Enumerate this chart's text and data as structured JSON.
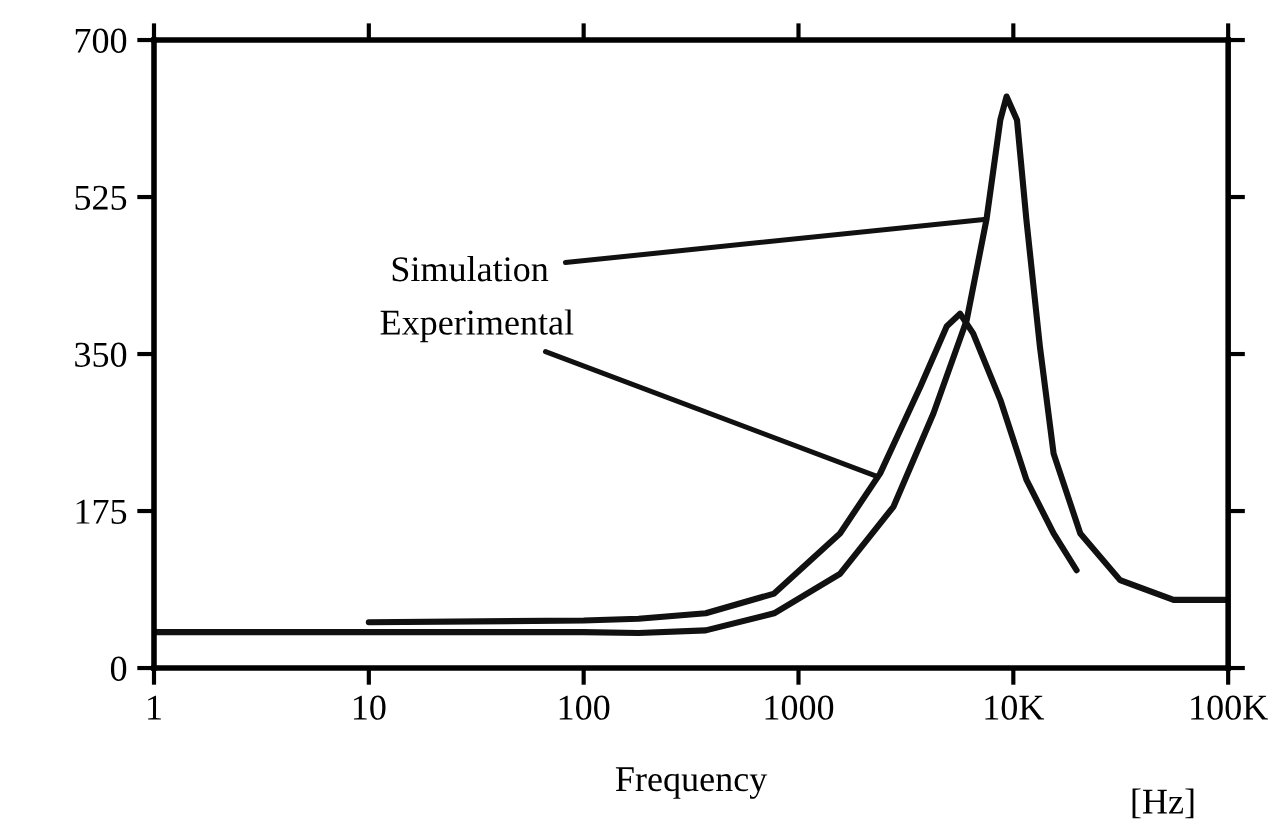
{
  "chart_data": {
    "type": "line",
    "xlabel": "Frequency",
    "log": "x",
    "xlim": [
      1,
      100000
    ],
    "ylim": [
      0,
      700
    ],
    "xticks": [
      1,
      10,
      100,
      1000,
      {
        "value": 10000,
        "label": "10K"
      },
      {
        "value": 100000,
        "label": "100K"
      }
    ],
    "yticks": [
      0,
      175,
      350,
      525,
      700
    ],
    "grid": false,
    "marker": "none",
    "line_style": "solid",
    "series": [
      {
        "color": "#111111",
        "x": [
          1,
          10,
          100,
          180,
          370,
          770,
          1560,
          2770,
          4250,
          6070,
          7500,
          8700,
          9300,
          10400,
          11500,
          13300,
          15400,
          20500,
          31400,
          55700,
          100000
        ],
        "values": [
          40,
          40,
          40,
          39,
          42,
          61,
          105,
          180,
          284,
          388,
          500,
          611,
          637,
          611,
          500,
          358,
          239,
          150,
          98,
          76,
          76
        ]
      },
      {
        "color": "#111111",
        "x": [
          10,
          100,
          180,
          370,
          770,
          1560,
          2400,
          3700,
          4900,
          5650,
          6500,
          8700,
          11500,
          15400,
          19700
        ],
        "values": [
          51,
          53,
          55,
          61,
          83,
          150,
          217,
          314,
          381,
          395,
          373,
          299,
          210,
          150,
          109
        ]
      }
    ],
    "annotations": [
      {
        "text": "Simulation",
        "x": 7300,
        "y": 500
      },
      {
        "text": "Experimental",
        "x": 2300,
        "y": 214
      },
      "[Hz]"
    ]
  }
}
